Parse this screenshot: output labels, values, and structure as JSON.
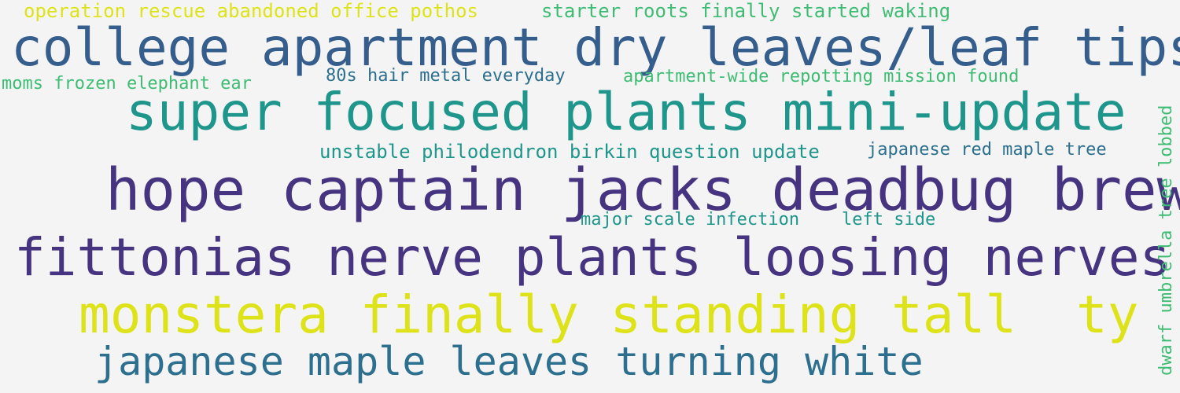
{
  "colors": {
    "background": "#f4f4f4",
    "yellow": "#dde318",
    "light_green": "#3fbc73",
    "teal": "#1f968b",
    "blue": "#2d6f8e",
    "steel_blue": "#355e8d",
    "indigo": "#463480"
  },
  "words": [
    {
      "text": "operation rescue abandoned office pothos",
      "color": "#dde318"
    },
    {
      "text": "starter roots finally started waking",
      "color": "#3fbc73"
    },
    {
      "text": "college apartment dry leaves/leaf tips",
      "color": "#355e8d"
    },
    {
      "text": "moms frozen elephant ear",
      "color": "#3fbc73"
    },
    {
      "text": "80s hair metal everyday",
      "color": "#2d6f8e"
    },
    {
      "text": "apartment-wide repotting mission found",
      "color": "#3fbc73"
    },
    {
      "text": "super focused plants mini-update",
      "color": "#1f968b"
    },
    {
      "text": "unstable philodendron birkin question update",
      "color": "#1f968b"
    },
    {
      "text": "japanese red maple tree",
      "color": "#2d6f8e"
    },
    {
      "text": "hope captain jacks deadbug brew",
      "color": "#463480"
    },
    {
      "text": "major scale infection",
      "color": "#1f968b"
    },
    {
      "text": "left side",
      "color": "#1f968b"
    },
    {
      "text": "fittonias nerve plants loosing nerves",
      "color": "#463480"
    },
    {
      "text": "monstera finally standing tall",
      "color": "#dde318"
    },
    {
      "text": "ty",
      "color": "#dde318"
    },
    {
      "text": "japanese maple leaves turning white",
      "color": "#2d6f8e"
    },
    {
      "text": "dwarf umbrella tree lobbed",
      "color": "#3fbc73"
    }
  ]
}
